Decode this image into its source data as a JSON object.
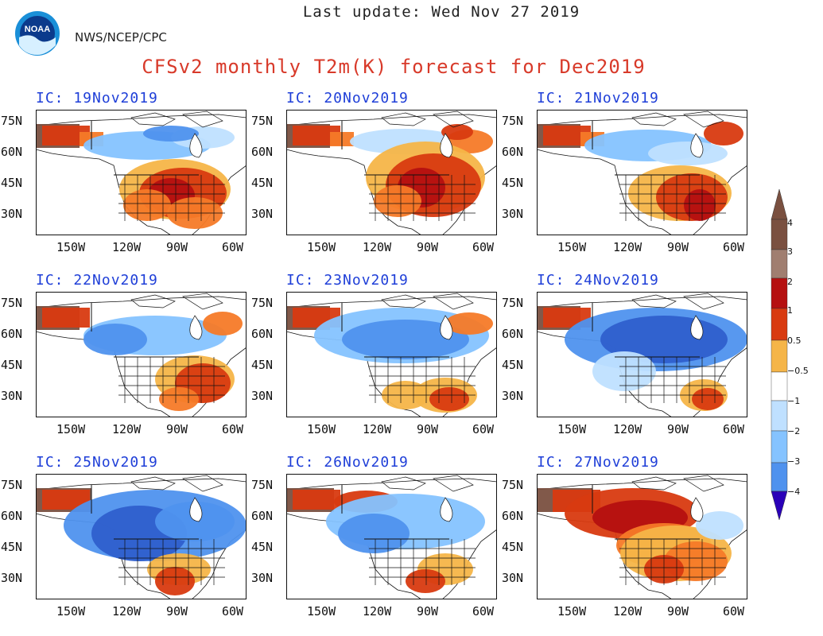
{
  "header": {
    "last_update": "Last update: Wed Nov 27 2019",
    "agency": "NWS/NCEP/CPC",
    "logo_text": "NOAA",
    "title": "CFSv2 monthly T2m(K) forecast for Dec2019"
  },
  "axis": {
    "lat_labels": [
      "75N",
      "60N",
      "45N",
      "30N"
    ],
    "lon_labels": [
      "150W",
      "120W",
      "90W",
      "60W"
    ]
  },
  "panels": [
    {
      "ic": "IC: 19Nov2019",
      "pattern": "warm_south"
    },
    {
      "ic": "IC: 20Nov2019",
      "pattern": "warm_central"
    },
    {
      "ic": "IC: 21Nov2019",
      "pattern": "warm_southeast"
    },
    {
      "ic": "IC: 22Nov2019",
      "pattern": "cool_north_warm_se"
    },
    {
      "ic": "IC: 23Nov2019",
      "pattern": "cool_canada"
    },
    {
      "ic": "IC: 24Nov2019",
      "pattern": "cool_canada_strong"
    },
    {
      "ic": "IC: 25Nov2019",
      "pattern": "cool_broad"
    },
    {
      "ic": "IC: 26Nov2019",
      "pattern": "cool_moderate"
    },
    {
      "ic": "IC: 27Nov2019",
      "pattern": "warm_west_canada"
    }
  ],
  "colorbar": {
    "labels": [
      "4",
      "3",
      "2",
      "1",
      "0.5",
      "−0.5",
      "−1",
      "−2",
      "−3",
      "−4"
    ],
    "colors": [
      "#7a5040",
      "#a07e70",
      "#b51010",
      "#d83a10",
      "#f57a28",
      "#f5b548",
      "#ffffff",
      "#bfe0ff",
      "#85c3ff",
      "#4f92ee",
      "#2f5fcc",
      "#4631b0",
      "#2a00b8"
    ],
    "top_color": "#7a5040",
    "bottom_color": "#2a00b8"
  },
  "palette": {
    "title_red": "#d83a2a",
    "panel_blue": "#1f3fd8"
  }
}
